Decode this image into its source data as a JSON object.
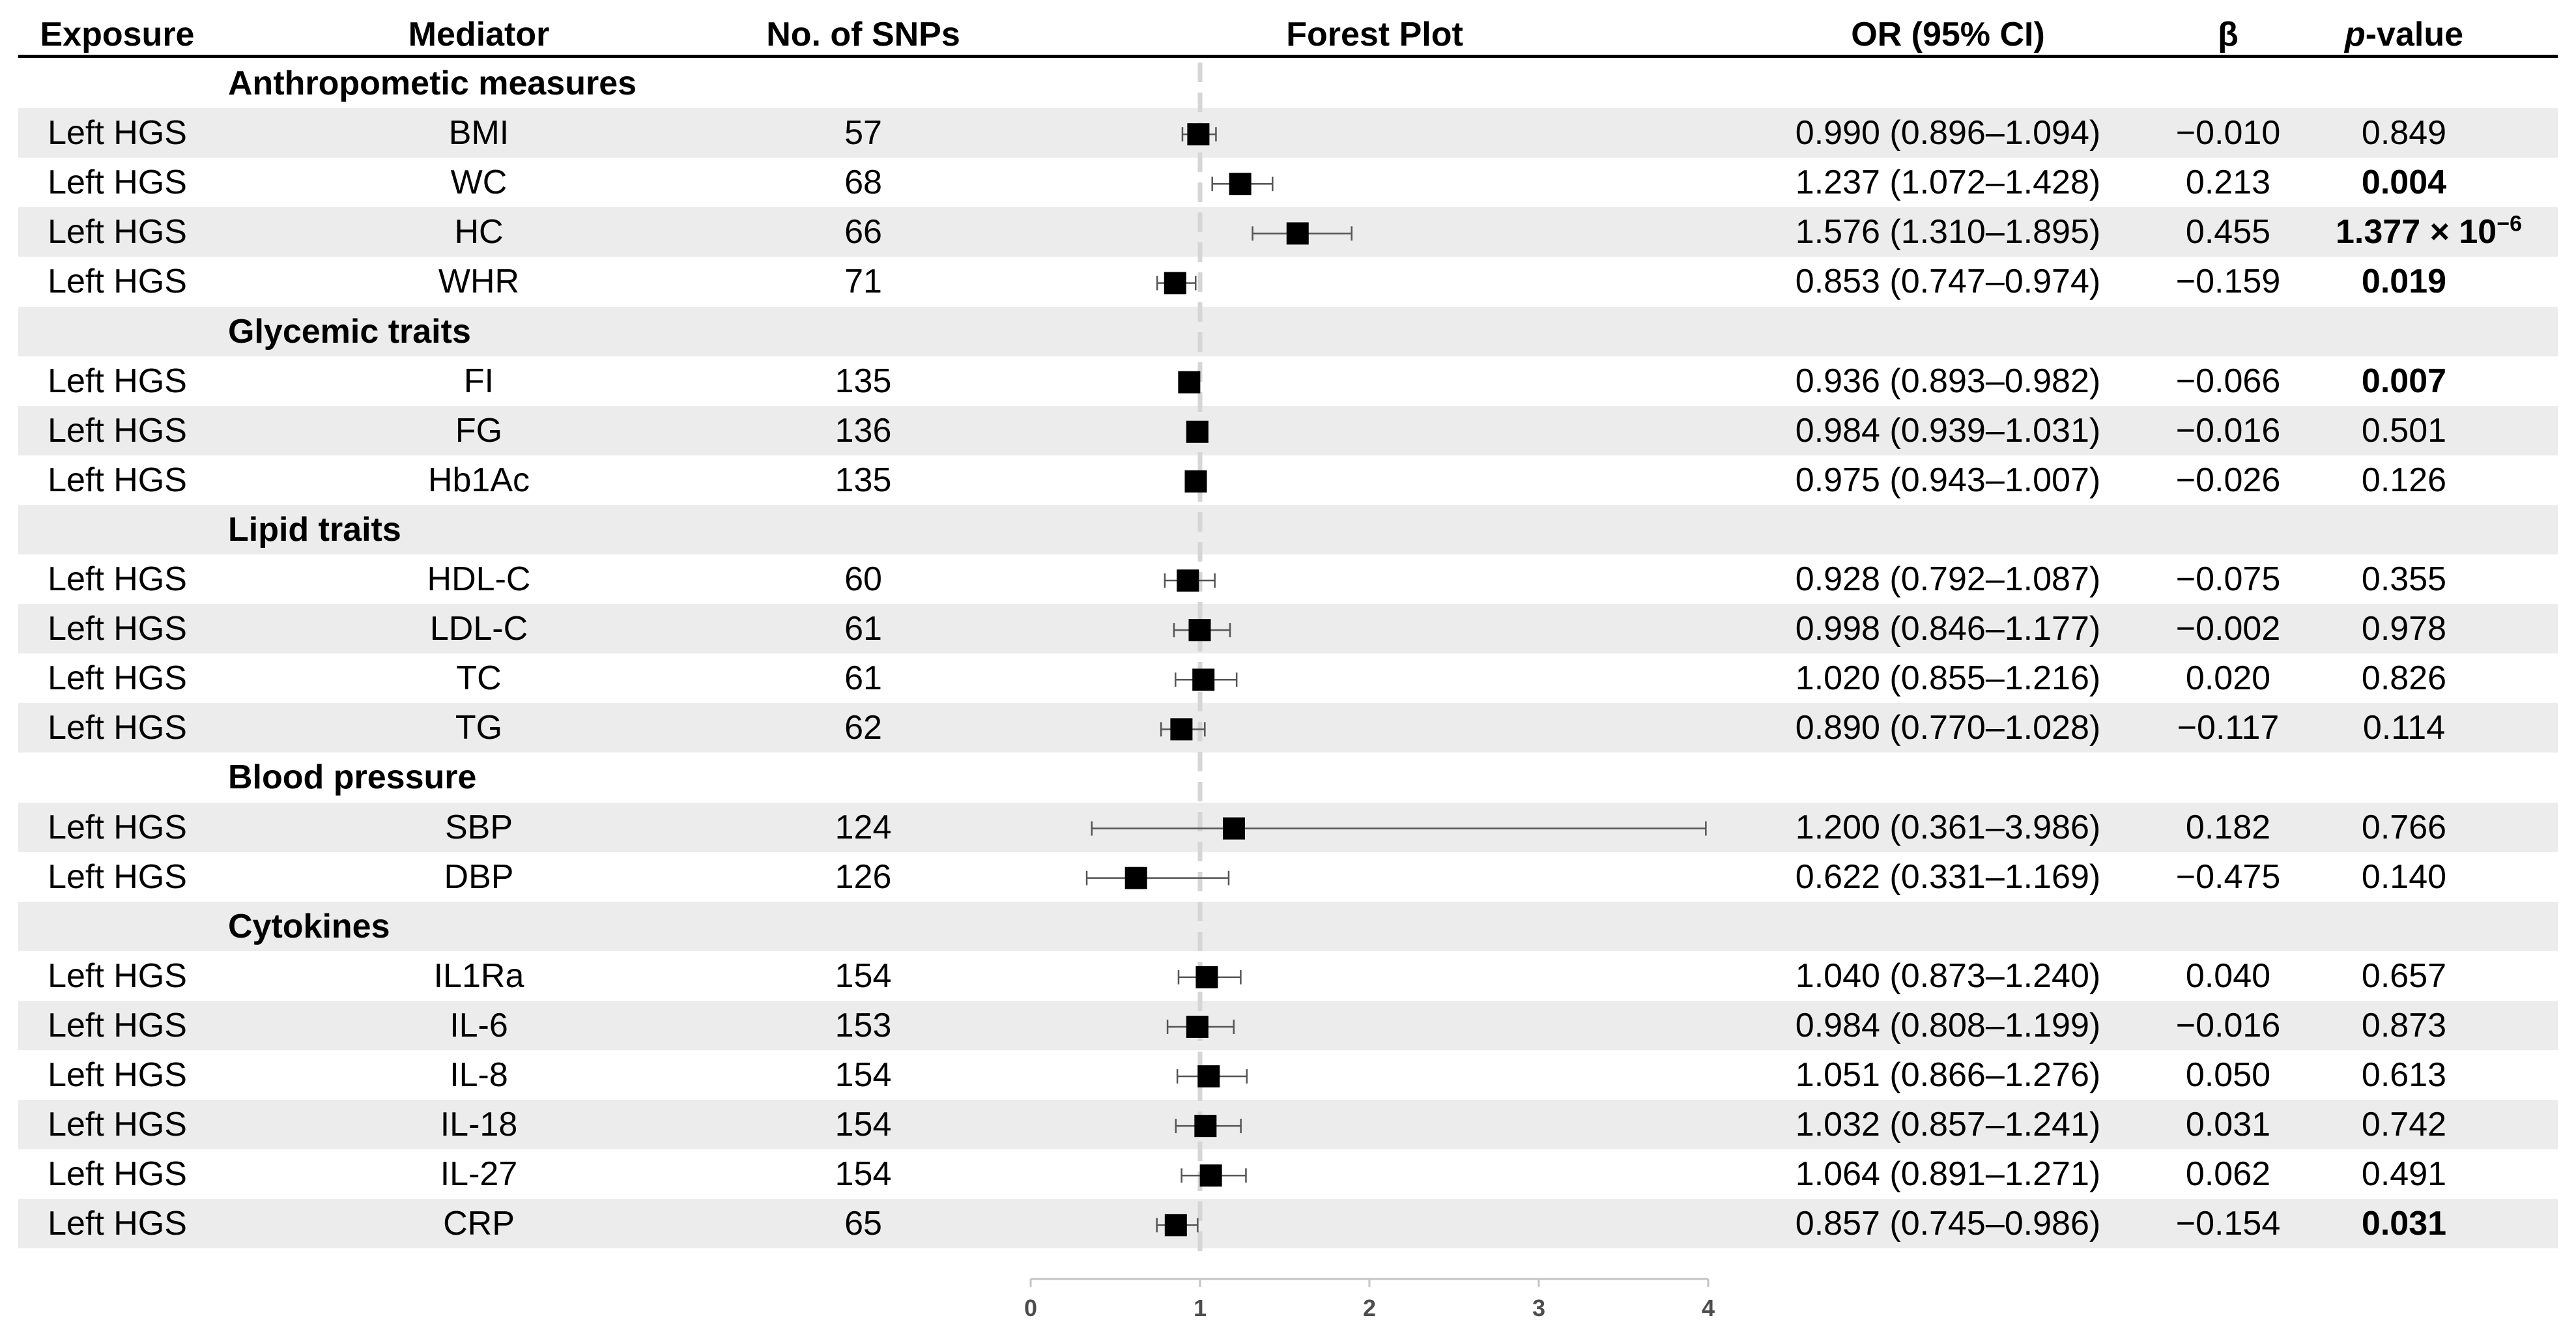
{
  "headers": {
    "exposure": "Exposure",
    "mediator": "Mediator",
    "snps": "No. of SNPs",
    "forest": "Forest Plot",
    "or": "OR (95% CI)",
    "beta": "β",
    "p_italic": "p",
    "p_rest": "-value"
  },
  "rows": [
    {
      "kind": "group",
      "label": "Anthropometic measures"
    },
    {
      "kind": "data",
      "exposure": "Left HGS",
      "mediator": "BMI",
      "snps": "57",
      "or_text": "0.990 (0.896–1.094)",
      "beta": "−0.010",
      "p": "0.849",
      "p_bold": false
    },
    {
      "kind": "data",
      "exposure": "Left HGS",
      "mediator": "WC",
      "snps": "68",
      "or_text": "1.237 (1.072–1.428)",
      "beta": "0.213",
      "p": "0.004",
      "p_bold": true
    },
    {
      "kind": "data",
      "exposure": "Left HGS",
      "mediator": "HC",
      "snps": "66",
      "or_text": "1.576 (1.310–1.895)",
      "beta": "0.455",
      "p": "1.377 × 10",
      "p_exp": "−6",
      "p_bold": true
    },
    {
      "kind": "data",
      "exposure": "Left HGS",
      "mediator": "WHR",
      "snps": "71",
      "or_text": "0.853 (0.747–0.974)",
      "beta": "−0.159",
      "p": "0.019",
      "p_bold": true
    },
    {
      "kind": "group",
      "label": "Glycemic traits"
    },
    {
      "kind": "data",
      "exposure": "Left HGS",
      "mediator": "FI",
      "snps": "135",
      "or_text": "0.936 (0.893–0.982)",
      "beta": "−0.066",
      "p": "0.007",
      "p_bold": true
    },
    {
      "kind": "data",
      "exposure": "Left HGS",
      "mediator": "FG",
      "snps": "136",
      "or_text": "0.984 (0.939–1.031)",
      "beta": "−0.016",
      "p": "0.501",
      "p_bold": false
    },
    {
      "kind": "data",
      "exposure": "Left HGS",
      "mediator": "Hb1Ac",
      "snps": "135",
      "or_text": "0.975 (0.943–1.007)",
      "beta": "−0.026",
      "p": "0.126",
      "p_bold": false
    },
    {
      "kind": "group",
      "label": "Lipid traits"
    },
    {
      "kind": "data",
      "exposure": "Left HGS",
      "mediator": "HDL-C",
      "snps": "60",
      "or_text": "0.928 (0.792–1.087)",
      "beta": "−0.075",
      "p": "0.355",
      "p_bold": false
    },
    {
      "kind": "data",
      "exposure": "Left HGS",
      "mediator": "LDL-C",
      "snps": "61",
      "or_text": "0.998 (0.846–1.177)",
      "beta": "−0.002",
      "p": "0.978",
      "p_bold": false
    },
    {
      "kind": "data",
      "exposure": "Left HGS",
      "mediator": "TC",
      "snps": "61",
      "or_text": "1.020 (0.855–1.216)",
      "beta": "0.020",
      "p": "0.826",
      "p_bold": false
    },
    {
      "kind": "data",
      "exposure": "Left HGS",
      "mediator": "TG",
      "snps": "62",
      "or_text": "0.890 (0.770–1.028)",
      "beta": "−0.117",
      "p": "0.114",
      "p_bold": false
    },
    {
      "kind": "group",
      "label": "Blood pressure"
    },
    {
      "kind": "data",
      "exposure": "Left HGS",
      "mediator": "SBP",
      "snps": "124",
      "or_text": "1.200 (0.361–3.986)",
      "beta": "0.182",
      "p": "0.766",
      "p_bold": false
    },
    {
      "kind": "data",
      "exposure": "Left HGS",
      "mediator": "DBP",
      "snps": "126",
      "or_text": "0.622 (0.331–1.169)",
      "beta": "−0.475",
      "p": "0.140",
      "p_bold": false
    },
    {
      "kind": "group",
      "label": "Cytokines"
    },
    {
      "kind": "data",
      "exposure": "Left HGS",
      "mediator": "IL1Ra",
      "snps": "154",
      "or_text": "1.040 (0.873–1.240)",
      "beta": "0.040",
      "p": "0.657",
      "p_bold": false
    },
    {
      "kind": "data",
      "exposure": "Left HGS",
      "mediator": "IL-6",
      "snps": "153",
      "or_text": "0.984 (0.808–1.199)",
      "beta": "−0.016",
      "p": "0.873",
      "p_bold": false
    },
    {
      "kind": "data",
      "exposure": "Left HGS",
      "mediator": "IL-8",
      "snps": "154",
      "or_text": "1.051 (0.866–1.276)",
      "beta": "0.050",
      "p": "0.613",
      "p_bold": false
    },
    {
      "kind": "data",
      "exposure": "Left HGS",
      "mediator": "IL-18",
      "snps": "154",
      "or_text": "1.032 (0.857–1.241)",
      "beta": "0.031",
      "p": "0.742",
      "p_bold": false
    },
    {
      "kind": "data",
      "exposure": "Left HGS",
      "mediator": "IL-27",
      "snps": "154",
      "or_text": "1.064 (0.891–1.271)",
      "beta": "0.062",
      "p": "0.491",
      "p_bold": false
    },
    {
      "kind": "data",
      "exposure": "Left HGS",
      "mediator": "CRP",
      "snps": "65",
      "or_text": "0.857 (0.745–0.986)",
      "beta": "−0.154",
      "p": "0.031",
      "p_bold": true
    }
  ],
  "chart_data": {
    "type": "scatter",
    "title": "Forest Plot",
    "xlim": [
      0,
      4
    ],
    "x_ticks": [
      "0",
      "1",
      "2",
      "3",
      "4"
    ],
    "reference_line": 1,
    "series": [
      {
        "values": [
          {
            "label": "BMI",
            "or": 0.99,
            "lo": 0.896,
            "hi": 1.094
          },
          {
            "label": "WC",
            "or": 1.237,
            "lo": 1.072,
            "hi": 1.428
          },
          {
            "label": "HC",
            "or": 1.576,
            "lo": 1.31,
            "hi": 1.895
          },
          {
            "label": "WHR",
            "or": 0.853,
            "lo": 0.747,
            "hi": 0.974
          },
          {
            "label": "FI",
            "or": 0.936,
            "lo": 0.893,
            "hi": 0.982
          },
          {
            "label": "FG",
            "or": 0.984,
            "lo": 0.939,
            "hi": 1.031
          },
          {
            "label": "Hb1Ac",
            "or": 0.975,
            "lo": 0.943,
            "hi": 1.007
          },
          {
            "label": "HDL-C",
            "or": 0.928,
            "lo": 0.792,
            "hi": 1.087
          },
          {
            "label": "LDL-C",
            "or": 0.998,
            "lo": 0.846,
            "hi": 1.177
          },
          {
            "label": "TC",
            "or": 1.02,
            "lo": 0.855,
            "hi": 1.216
          },
          {
            "label": "TG",
            "or": 0.89,
            "lo": 0.77,
            "hi": 1.028
          },
          {
            "label": "SBP",
            "or": 1.2,
            "lo": 0.361,
            "hi": 3.986
          },
          {
            "label": "DBP",
            "or": 0.622,
            "lo": 0.331,
            "hi": 1.169
          },
          {
            "label": "IL1Ra",
            "or": 1.04,
            "lo": 0.873,
            "hi": 1.24
          },
          {
            "label": "IL-6",
            "or": 0.984,
            "lo": 0.808,
            "hi": 1.199
          },
          {
            "label": "IL-8",
            "or": 1.051,
            "lo": 0.866,
            "hi": 1.276
          },
          {
            "label": "IL-18",
            "or": 1.032,
            "lo": 0.857,
            "hi": 1.241
          },
          {
            "label": "IL-27",
            "or": 1.064,
            "lo": 0.891,
            "hi": 1.271
          },
          {
            "label": "CRP",
            "or": 0.857,
            "lo": 0.745,
            "hi": 0.986
          }
        ]
      }
    ],
    "grid": false,
    "legend": "none"
  }
}
